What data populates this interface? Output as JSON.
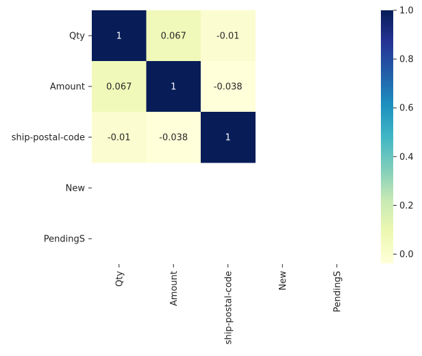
{
  "chart_data": {
    "type": "heatmap",
    "title": "",
    "row_labels": [
      "Qty",
      "Amount",
      "ship-postal-code",
      "New",
      "PendingS"
    ],
    "col_labels": [
      "Qty",
      "Amount",
      "ship-postal-code",
      "New",
      "PendingS"
    ],
    "values": [
      [
        1,
        0.067,
        -0.01,
        null,
        null
      ],
      [
        0.067,
        1,
        -0.038,
        null,
        null
      ],
      [
        -0.01,
        -0.038,
        1,
        null,
        null
      ],
      [
        null,
        null,
        null,
        null,
        null
      ],
      [
        null,
        null,
        null,
        null,
        null
      ]
    ],
    "annotations": [
      [
        "1",
        "0.067",
        "-0.01",
        "",
        ""
      ],
      [
        "0.067",
        "1",
        "-0.038",
        "",
        ""
      ],
      [
        "-0.01",
        "-0.038",
        "1",
        "",
        ""
      ],
      [
        "",
        "",
        "",
        "",
        ""
      ],
      [
        "",
        "",
        "",
        "",
        ""
      ]
    ],
    "colormap": "YlGnBu",
    "colormap_stops": [
      "#ffffd9",
      "#edf8b1",
      "#c7e9b4",
      "#7fcdbb",
      "#41b6c4",
      "#1d91c0",
      "#225ea8",
      "#253494",
      "#081d58"
    ],
    "vmin": -0.038,
    "vmax": 1,
    "colorbar": {
      "ticks": [
        0.0,
        0.2,
        0.4,
        0.6,
        0.8,
        1.0
      ],
      "tick_labels": [
        "0.0",
        "0.2",
        "0.4",
        "0.6",
        "0.8",
        "1.0"
      ]
    },
    "text_colors": {
      "dark": "#262626",
      "light": "#ffffff"
    }
  }
}
